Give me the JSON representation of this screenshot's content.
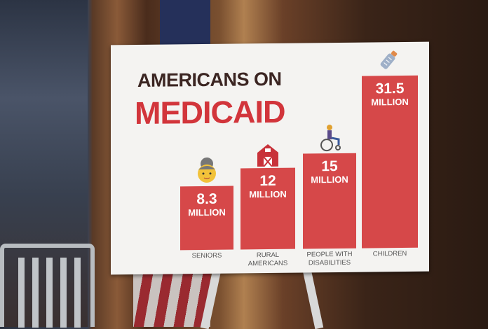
{
  "chart_data": {
    "type": "bar",
    "title": "AMERICANS ON",
    "subtitle": "MEDICAID",
    "categories": [
      "SENIORS",
      "RURAL AMERICANS",
      "PEOPLE WITH DISABILITIES",
      "CHILDREN"
    ],
    "category_lines": [
      [
        "SENIORS"
      ],
      [
        "RURAL",
        "AMERICANS"
      ],
      [
        "PEOPLE WITH",
        "DISABILITIES"
      ],
      [
        "CHILDREN"
      ]
    ],
    "values": [
      8.3,
      12,
      15,
      31.5
    ],
    "value_labels": [
      "8.3",
      "12",
      "15",
      "31.5"
    ],
    "unit_label": "MILLION",
    "icons": [
      "senior-woman-icon",
      "barn-icon",
      "wheelchair-icon",
      "baby-bottle-icon"
    ],
    "bar_color": "#d64849",
    "title_color": "#3b2522",
    "subtitle_color": "#d2353b",
    "ylim": [
      -5.3,
      33
    ]
  }
}
